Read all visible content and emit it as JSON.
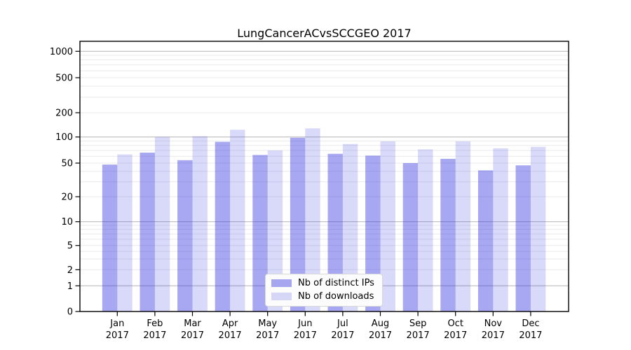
{
  "title": "LungCancerACvsSCCGEO 2017",
  "chart_data": {
    "type": "bar",
    "title": "LungCancerACvsSCCGEO 2017",
    "months": [
      "Jan",
      "Feb",
      "Mar",
      "Apr",
      "May",
      "Jun",
      "Jul",
      "Aug",
      "Sep",
      "Oct",
      "Nov",
      "Dec"
    ],
    "year": "2017",
    "categories": [
      "Jan 2017",
      "Feb 2017",
      "Mar 2017",
      "Apr 2017",
      "May 2017",
      "Jun 2017",
      "Jul 2017",
      "Aug 2017",
      "Sep 2017",
      "Oct 2017",
      "Nov 2017",
      "Dec 2017"
    ],
    "series": [
      {
        "name": "Nb of distinct IPs",
        "values": [
          48,
          66,
          54,
          88,
          62,
          98,
          64,
          61,
          50,
          56,
          41,
          47
        ]
      },
      {
        "name": "Nb of downloads",
        "values": [
          63,
          100,
          102,
          123,
          70,
          128,
          83,
          89,
          72,
          89,
          74,
          77
        ]
      }
    ],
    "yscale": "symlog",
    "yticks": [
      0,
      1,
      2,
      5,
      10,
      20,
      50,
      100,
      200,
      500,
      1000
    ],
    "ytick_labels": [
      "0",
      "1",
      "2",
      "5",
      "10",
      "20",
      "50",
      "100",
      "200",
      "500",
      "1000"
    ],
    "ylim": [
      0,
      1300
    ],
    "grid": true,
    "legend_position": "lower center"
  },
  "legend": {
    "items": [
      {
        "label": "Nb of distinct IPs",
        "series": "ips"
      },
      {
        "label": "Nb of downloads",
        "series": "downloads"
      }
    ]
  },
  "colors": {
    "ips_fill": "rgba(51,51,226,0.43)",
    "downloads_fill": "rgba(51,51,226,0.19)",
    "grid_major": "#bcbcbc",
    "grid_minor": "#e9e9e9",
    "axis": "#000000",
    "legend_bg": "#fcfcfc",
    "legend_border": "#d8d8d8"
  }
}
